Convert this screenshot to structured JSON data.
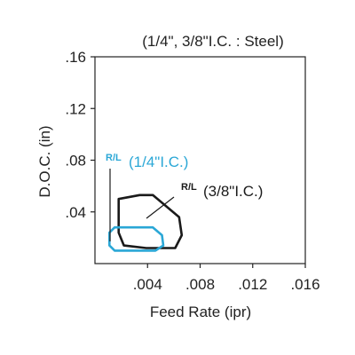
{
  "chart_data": {
    "type": "area",
    "title": "(1/4\", 3/8\"I.C. : Steel)",
    "xlabel": "Feed Rate (ipr)",
    "ylabel": "D.O.C. (in)",
    "xlim": [
      0,
      0.016
    ],
    "ylim": [
      0,
      0.16
    ],
    "x_ticks": [
      0.004,
      0.008,
      0.012,
      0.016
    ],
    "x_tick_labels": [
      ".004",
      ".008",
      ".012",
      ".016"
    ],
    "y_ticks": [
      0.04,
      0.08,
      0.12,
      0.16
    ],
    "y_tick_labels": [
      ".04",
      ".08",
      ".12",
      ".16"
    ],
    "grid": false,
    "series": [
      {
        "name": "(3/8\"I.C.)",
        "marker": "R/L",
        "color": "#1a1a1a",
        "polygon": [
          [
            0.0018,
            0.05
          ],
          [
            0.0034,
            0.053
          ],
          [
            0.0044,
            0.053
          ],
          [
            0.0064,
            0.036
          ],
          [
            0.0066,
            0.022
          ],
          [
            0.0061,
            0.012
          ],
          [
            0.0039,
            0.012
          ],
          [
            0.0022,
            0.014
          ],
          [
            0.0018,
            0.024
          ]
        ]
      },
      {
        "name": "(1/4\"I.C.)",
        "marker": "R/L",
        "color": "#2aa7d6",
        "polygon": [
          [
            0.0011,
            0.024
          ],
          [
            0.0015,
            0.028
          ],
          [
            0.0044,
            0.028
          ],
          [
            0.0051,
            0.022
          ],
          [
            0.0052,
            0.014
          ],
          [
            0.0046,
            0.01
          ],
          [
            0.0015,
            0.01
          ],
          [
            0.0011,
            0.014
          ]
        ]
      }
    ],
    "annotations": [
      {
        "series": 0,
        "rl": "R/L",
        "text": "(3/8\"I.C.)"
      },
      {
        "series": 1,
        "rl": "R/L",
        "text": "(1/4\"I.C.)"
      }
    ]
  }
}
